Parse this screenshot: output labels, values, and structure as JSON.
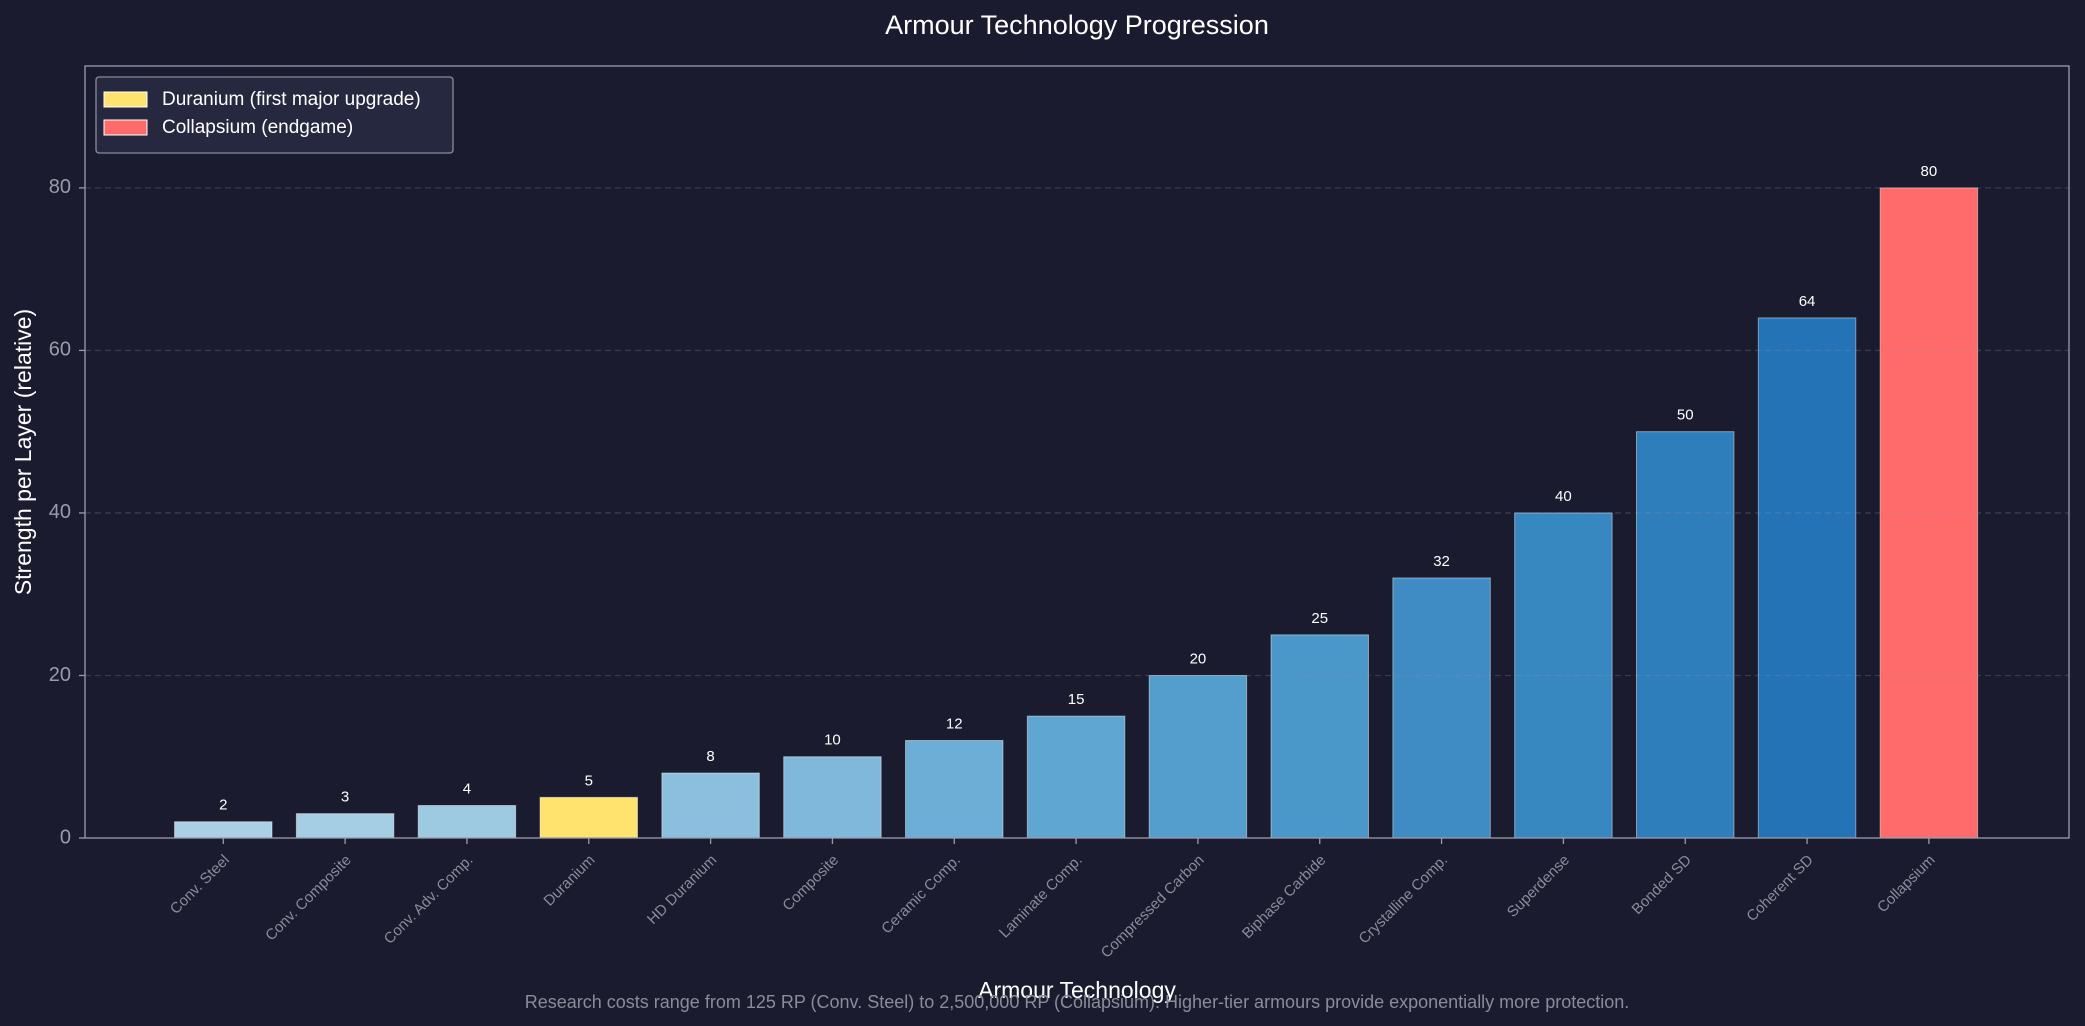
{
  "chart_data": {
    "type": "bar",
    "title": "Armour Technology Progression",
    "x_label": "Armour Technology",
    "y_label": "Strength per Layer (relative)",
    "footnote": "Research costs range from 125 RP (Conv. Steel) to 2,500,000 RP (Collapsium). Higher-tier armours provide exponentially more protection.",
    "categories": [
      "Conv. Steel",
      "Conv. Composite",
      "Conv. Adv. Comp.",
      "Duranium",
      "HD Duranium",
      "Composite",
      "Ceramic Comp.",
      "Laminate Comp.",
      "Compressed Carbon",
      "Biphase Carbide",
      "Crystalline Comp.",
      "Superdense",
      "Bonded SD",
      "Coherent SD",
      "Collapsium"
    ],
    "values": [
      2,
      3,
      4,
      5,
      8,
      10,
      12,
      15,
      20,
      25,
      32,
      40,
      50,
      64,
      80
    ],
    "colors": [
      "#abd0e6",
      "#a5cde3",
      "#9ecae1",
      "#ffe36e",
      "#8bbfdd",
      "#7fb8da",
      "#6caed6",
      "#60a6d2",
      "#549ecd",
      "#4a97c9",
      "#3f8bc3",
      "#3787c0",
      "#2e7ebc",
      "#2373b6",
      "#ff6b6b"
    ],
    "legend": [
      {
        "label": "Duranium (first major upgrade)",
        "color": "#ffe36e"
      },
      {
        "label": "Collapsium (endgame)",
        "color": "#ff6b6b"
      }
    ],
    "legend_position": "upper left",
    "ylim": [
      0,
      95
    ],
    "yticks": [
      0,
      20,
      40,
      60,
      80
    ],
    "grid": true
  }
}
